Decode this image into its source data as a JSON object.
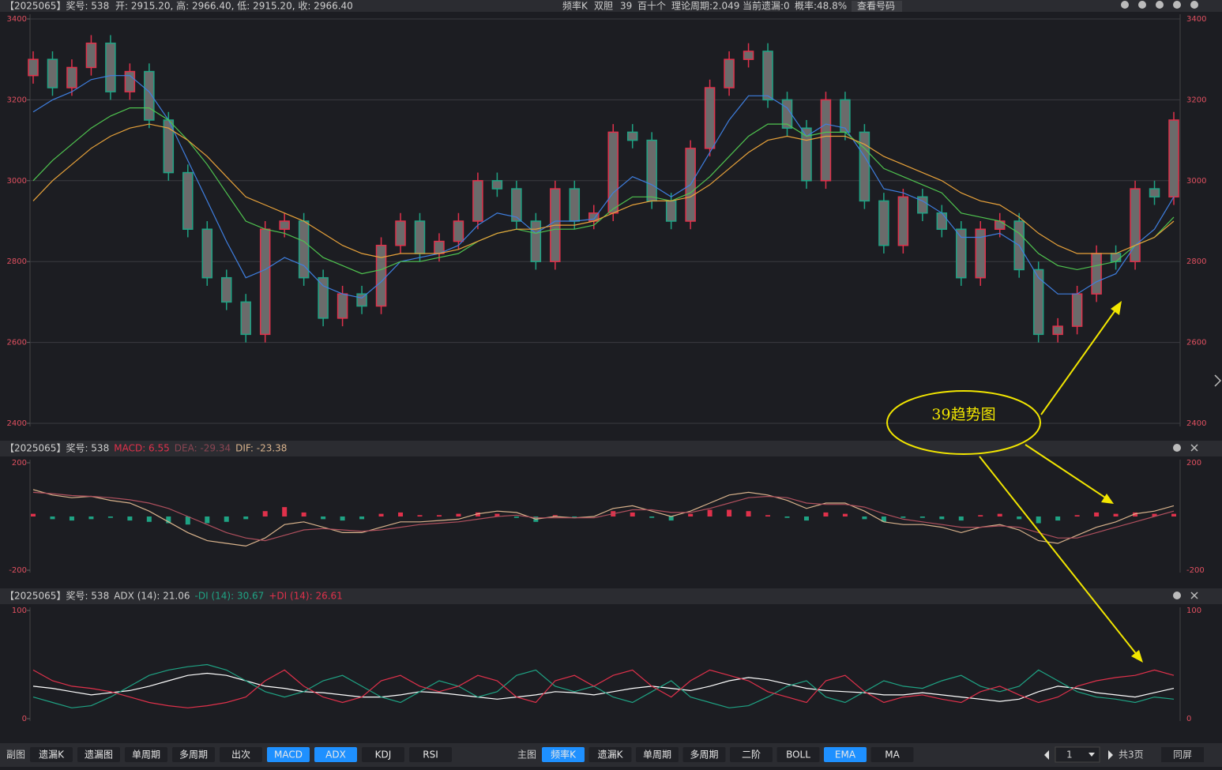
{
  "header": {
    "title": "【2025065】奖号: 538",
    "ohlc": "开: 2915.20, 高: 2966.40, 低: 2915.20, 收: 2966.40",
    "center": [
      "频率K",
      "双胆",
      "39",
      "百十个",
      "理论周期:2.049",
      "当前遗漏:0",
      "概率:48.8%"
    ],
    "button": "查看号码"
  },
  "annotation": "39趋势图",
  "chart_data": [
    {
      "type": "candlestick",
      "ylim": [
        2400,
        3400
      ],
      "yticks": [
        2400,
        2600,
        2800,
        3000,
        3200,
        3400
      ],
      "grid": true,
      "up_color": "#e0314b",
      "down_color": "#1fa384",
      "open": [
        3260,
        3300,
        3230,
        3280,
        3340,
        3220,
        3270,
        3150,
        3020,
        2880,
        2760,
        2700,
        2620,
        2880,
        2900,
        2760,
        2660,
        2720,
        2690,
        2840,
        2900,
        2820,
        2850,
        2900,
        3000,
        2980,
        2900,
        2800,
        2980,
        2900,
        2920,
        3120,
        3100,
        2950,
        2900,
        3080,
        3230,
        3300,
        3320,
        3200,
        3130,
        3000,
        3200,
        3120,
        2950,
        2840,
        2960,
        2920,
        2880,
        2760,
        2880,
        2900,
        2780,
        2620,
        2640,
        2720,
        2820,
        2800,
        2980,
        2960
      ],
      "high": [
        3320,
        3320,
        3300,
        3360,
        3360,
        3290,
        3290,
        3170,
        3040,
        2900,
        2780,
        2720,
        2900,
        2920,
        2920,
        2780,
        2740,
        2740,
        2860,
        2920,
        2920,
        2870,
        2920,
        3020,
        3020,
        3000,
        2920,
        3000,
        3000,
        2940,
        3140,
        3140,
        3120,
        2970,
        3100,
        3250,
        3320,
        3340,
        3340,
        3220,
        3150,
        3220,
        3220,
        3140,
        2970,
        2980,
        2980,
        2940,
        2900,
        2900,
        2920,
        2920,
        2800,
        2660,
        2740,
        2840,
        2840,
        3000,
        3000,
        3170
      ],
      "low": [
        3240,
        3210,
        3210,
        3260,
        3200,
        3200,
        3130,
        3000,
        2860,
        2740,
        2680,
        2600,
        2600,
        2860,
        2740,
        2640,
        2640,
        2670,
        2670,
        2820,
        2800,
        2800,
        2830,
        2880,
        2960,
        2880,
        2780,
        2780,
        2880,
        2880,
        2900,
        3080,
        2930,
        2880,
        2880,
        3060,
        3210,
        3280,
        3180,
        3110,
        2980,
        2980,
        3100,
        2930,
        2820,
        2820,
        2900,
        2860,
        2740,
        2740,
        2860,
        2760,
        2600,
        2600,
        2620,
        2700,
        2780,
        2780,
        2940,
        2940
      ],
      "close": [
        3300,
        3230,
        3280,
        3340,
        3220,
        3270,
        3150,
        3020,
        2880,
        2760,
        2700,
        2620,
        2880,
        2900,
        2760,
        2660,
        2720,
        2690,
        2840,
        2900,
        2820,
        2850,
        2900,
        3000,
        2980,
        2900,
        2800,
        2980,
        2900,
        2920,
        3120,
        3100,
        2950,
        2900,
        3080,
        3230,
        3300,
        3320,
        3200,
        3130,
        3000,
        3200,
        3120,
        2950,
        2840,
        2960,
        2920,
        2880,
        2760,
        2880,
        2900,
        2780,
        2620,
        2640,
        2720,
        2820,
        2800,
        2980,
        2960,
        3150
      ],
      "series": [
        {
          "color": "#3f7fe0",
          "values": [
            3170,
            3200,
            3220,
            3250,
            3260,
            3260,
            3220,
            3150,
            3050,
            2950,
            2850,
            2760,
            2780,
            2810,
            2790,
            2740,
            2720,
            2710,
            2750,
            2800,
            2810,
            2820,
            2840,
            2890,
            2920,
            2910,
            2870,
            2900,
            2900,
            2905,
            2970,
            3010,
            2990,
            2960,
            2990,
            3070,
            3150,
            3210,
            3210,
            3180,
            3110,
            3140,
            3130,
            3060,
            2980,
            2970,
            2950,
            2920,
            2860,
            2860,
            2870,
            2840,
            2760,
            2720,
            2720,
            2750,
            2770,
            2840,
            2880,
            2960
          ]
        },
        {
          "color": "#4fc44f",
          "values": [
            3000,
            3050,
            3090,
            3130,
            3160,
            3180,
            3180,
            3150,
            3100,
            3040,
            2970,
            2900,
            2880,
            2870,
            2850,
            2810,
            2790,
            2770,
            2780,
            2800,
            2800,
            2810,
            2820,
            2850,
            2870,
            2880,
            2870,
            2880,
            2880,
            2890,
            2930,
            2960,
            2960,
            2950,
            2970,
            3010,
            3060,
            3110,
            3140,
            3140,
            3110,
            3120,
            3120,
            3080,
            3030,
            3010,
            2990,
            2970,
            2920,
            2910,
            2900,
            2870,
            2820,
            2790,
            2780,
            2790,
            2800,
            2840,
            2860,
            2910
          ]
        },
        {
          "color": "#e8a23a",
          "values": [
            2950,
            3000,
            3040,
            3080,
            3110,
            3130,
            3140,
            3130,
            3100,
            3060,
            3010,
            2960,
            2940,
            2920,
            2900,
            2870,
            2840,
            2820,
            2810,
            2820,
            2820,
            2820,
            2830,
            2850,
            2870,
            2880,
            2880,
            2890,
            2890,
            2900,
            2920,
            2940,
            2950,
            2950,
            2960,
            2990,
            3030,
            3070,
            3100,
            3110,
            3100,
            3110,
            3110,
            3090,
            3060,
            3040,
            3020,
            3000,
            2970,
            2950,
            2940,
            2910,
            2870,
            2840,
            2820,
            2820,
            2820,
            2840,
            2860,
            2900
          ]
        }
      ]
    },
    {
      "type": "macd",
      "title": "【2025065】奖号: 538",
      "readouts": [
        {
          "text": "MACD: 6.55",
          "color": "#e0314b"
        },
        {
          "text": "DEA: -29.34",
          "color": "#8a4552"
        },
        {
          "text": "DIF: -23.38",
          "color": "#d9b38c"
        }
      ],
      "ylim": [
        -200,
        200
      ],
      "yticks": [
        -200,
        200
      ],
      "grid": false,
      "up_color": "#e0314b",
      "down_color": "#1fa384",
      "histogram": [
        10,
        -10,
        -15,
        -10,
        -5,
        -15,
        -20,
        -25,
        -30,
        -25,
        -20,
        -10,
        20,
        35,
        15,
        -10,
        -15,
        -10,
        10,
        15,
        5,
        5,
        10,
        15,
        10,
        -5,
        -20,
        5,
        -5,
        0,
        20,
        15,
        -5,
        -15,
        10,
        25,
        25,
        20,
        5,
        -5,
        -15,
        15,
        10,
        -10,
        -20,
        -5,
        -5,
        -10,
        -15,
        5,
        10,
        -10,
        -25,
        -15,
        5,
        15,
        10,
        15,
        10,
        10
      ],
      "series": [
        {
          "color": "#d9b38c",
          "values": [
            100,
            80,
            70,
            75,
            60,
            50,
            20,
            -20,
            -60,
            -90,
            -100,
            -110,
            -80,
            -30,
            -20,
            -40,
            -60,
            -60,
            -40,
            -20,
            -20,
            -15,
            -10,
            10,
            20,
            15,
            -10,
            0,
            -5,
            0,
            30,
            40,
            20,
            0,
            20,
            50,
            80,
            90,
            80,
            60,
            30,
            50,
            50,
            20,
            -20,
            -30,
            -30,
            -40,
            -60,
            -40,
            -30,
            -50,
            -90,
            -100,
            -70,
            -40,
            -20,
            10,
            20,
            40
          ]
        },
        {
          "color": "#b0505e",
          "values": [
            90,
            85,
            78,
            75,
            70,
            62,
            50,
            30,
            0,
            -30,
            -60,
            -80,
            -90,
            -70,
            -50,
            -45,
            -50,
            -55,
            -50,
            -40,
            -30,
            -25,
            -20,
            -10,
            0,
            5,
            -5,
            -5,
            -5,
            -5,
            10,
            25,
            25,
            15,
            15,
            30,
            50,
            70,
            75,
            70,
            50,
            45,
            45,
            35,
            10,
            -10,
            -20,
            -30,
            -40,
            -40,
            -35,
            -40,
            -60,
            -80,
            -80,
            -60,
            -40,
            -20,
            0,
            20
          ]
        }
      ]
    },
    {
      "type": "adx",
      "title": "【2025065】奖号: 538",
      "readouts": [
        {
          "text": "ADX (14): 21.06",
          "color": "#cccccc"
        },
        {
          "text": "-DI (14): 30.67",
          "color": "#1fa384"
        },
        {
          "text": "+DI (14): 26.61",
          "color": "#e0314b"
        }
      ],
      "ylim": [
        0,
        100
      ],
      "yticks": [
        0,
        100
      ],
      "grid": false,
      "series": [
        {
          "color": "#ffffff",
          "values": [
            30,
            28,
            25,
            22,
            24,
            26,
            30,
            35,
            40,
            42,
            40,
            35,
            30,
            28,
            25,
            24,
            22,
            20,
            20,
            22,
            25,
            24,
            22,
            20,
            18,
            20,
            22,
            25,
            24,
            22,
            25,
            28,
            30,
            28,
            26,
            30,
            35,
            38,
            36,
            32,
            28,
            26,
            25,
            24,
            22,
            22,
            24,
            22,
            20,
            18,
            16,
            18,
            25,
            30,
            28,
            24,
            22,
            20,
            24,
            28
          ]
        },
        {
          "color": "#1fa384",
          "values": [
            20,
            15,
            10,
            12,
            20,
            30,
            40,
            45,
            48,
            50,
            45,
            35,
            25,
            20,
            25,
            35,
            40,
            30,
            20,
            15,
            25,
            35,
            30,
            20,
            25,
            40,
            45,
            30,
            25,
            30,
            20,
            15,
            25,
            35,
            20,
            15,
            10,
            12,
            20,
            30,
            35,
            20,
            15,
            25,
            35,
            30,
            28,
            35,
            40,
            30,
            25,
            30,
            45,
            35,
            25,
            20,
            18,
            15,
            20,
            18
          ]
        },
        {
          "color": "#e0314b",
          "values": [
            45,
            35,
            30,
            28,
            25,
            20,
            15,
            12,
            10,
            12,
            15,
            20,
            35,
            45,
            30,
            20,
            15,
            20,
            35,
            40,
            30,
            25,
            30,
            40,
            35,
            20,
            15,
            35,
            40,
            30,
            40,
            45,
            30,
            20,
            35,
            45,
            40,
            35,
            25,
            20,
            15,
            35,
            40,
            25,
            15,
            20,
            22,
            18,
            15,
            25,
            30,
            22,
            15,
            20,
            30,
            35,
            38,
            40,
            45,
            40
          ]
        }
      ]
    }
  ],
  "toolbar": {
    "left_title": "副图",
    "left_buttons": [
      {
        "label": "遗漏K",
        "active": false
      },
      {
        "label": "遗漏图",
        "active": false
      },
      {
        "label": "单周期",
        "active": false
      },
      {
        "label": "多周期",
        "active": false
      },
      {
        "label": "出次",
        "active": false
      },
      {
        "label": "MACD",
        "active": true
      },
      {
        "label": "ADX",
        "active": true
      },
      {
        "label": "KDJ",
        "active": false
      },
      {
        "label": "RSI",
        "active": false
      }
    ],
    "right_title": "主图",
    "right_buttons": [
      {
        "label": "频率K",
        "active": true
      },
      {
        "label": "遗漏K",
        "active": false
      },
      {
        "label": "单周期",
        "active": false
      },
      {
        "label": "多周期",
        "active": false
      },
      {
        "label": "二阶",
        "active": false
      },
      {
        "label": "BOLL",
        "active": false
      },
      {
        "label": "EMA",
        "active": true
      },
      {
        "label": "MA",
        "active": false
      }
    ],
    "page": "1",
    "page_total": "共3页",
    "same_screen": "同屏"
  }
}
